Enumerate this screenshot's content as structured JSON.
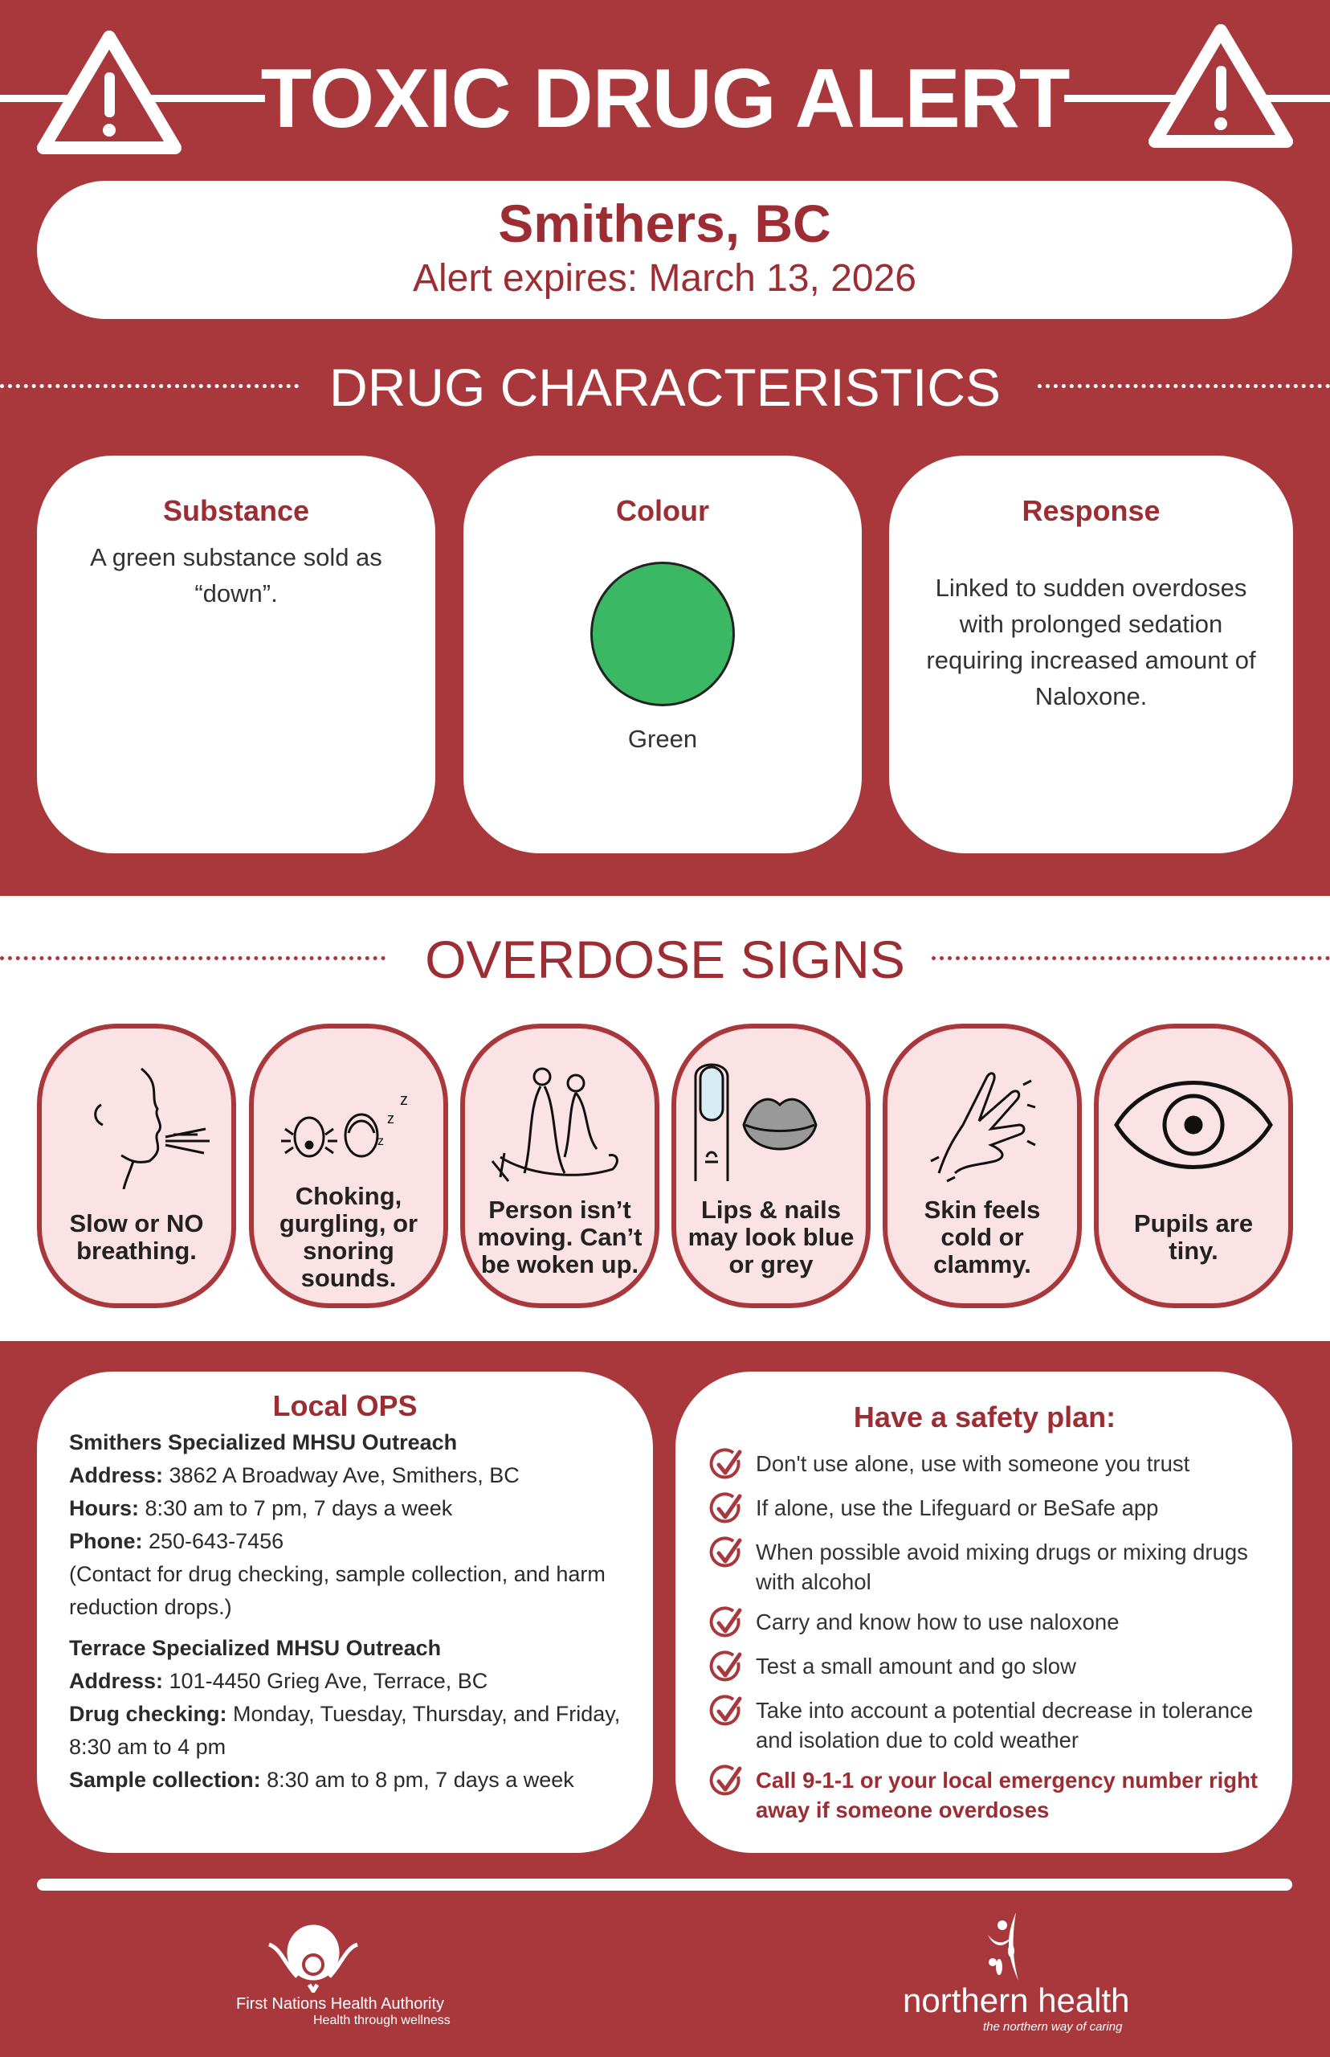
{
  "header": {
    "title": "TOXIC DRUG ALERT",
    "warning_icon": "warning-triangle-icon"
  },
  "location": {
    "name": "Smithers, BC",
    "expires": "Alert expires: March 13, 2026"
  },
  "characteristics": {
    "heading": "DRUG CHARACTERISTICS",
    "substance": {
      "title": "Substance",
      "text": "A green substance sold as “down”."
    },
    "colour": {
      "title": "Colour",
      "swatch": "#3bb863",
      "label": "Green"
    },
    "response": {
      "title": "Response",
      "text": "Linked to sudden overdoses with prolonged sedation requiring increased amount of Naloxone."
    }
  },
  "signs": {
    "heading": "OVERDOSE SIGNS",
    "items": [
      {
        "label": "Slow or NO breathing.",
        "icon": "breathing-face-icon"
      },
      {
        "label": "Choking, gurgling, or snoring sounds.",
        "icon": "choking-snoring-icon"
      },
      {
        "label": "Person isn’t moving. Can’t be woken up.",
        "icon": "unresponsive-person-icon"
      },
      {
        "label": "Lips & nails may look blue or grey",
        "icon": "lips-nails-icon"
      },
      {
        "label": "Skin feels cold or clammy.",
        "icon": "cold-hand-icon"
      },
      {
        "label": "Pupils are tiny.",
        "icon": "eye-pupil-icon"
      }
    ]
  },
  "local_ops": {
    "title": "Local OPS",
    "smithers": {
      "name": "Smithers Specialized MHSU Outreach",
      "address_label": "Address:",
      "address": " 3862 A Broadway Ave, Smithers, BC",
      "hours_label": "Hours:",
      "hours": " 8:30 am to 7 pm, 7 days a week",
      "phone_label": "Phone:",
      "phone": " 250-643-7456",
      "note": "(Contact for drug checking, sample collection, and harm reduction drops.)"
    },
    "terrace": {
      "name": "Terrace Specialized MHSU Outreach",
      "address_label": "Address:",
      "address": " 101-4450 Grieg Ave, Terrace, BC",
      "checking_label": "Drug checking:",
      "checking": " Monday, Tuesday, Thursday, and Friday, 8:30 am to 4 pm",
      "sample_label": "Sample collection:",
      "sample": " 8:30 am to 8 pm, 7 days a week"
    }
  },
  "safety_plan": {
    "title": "Have a safety plan:",
    "items": [
      "Don't use alone, use with someone you trust",
      "If alone, use the Lifeguard or BeSafe app",
      "When possible avoid mixing drugs or mixing drugs with alcohol",
      "Carry and know how to use naloxone",
      "Test a small amount and go slow",
      "Take into account a potential decrease in tolerance and isolation due to cold weather",
      "Call 9-1-1 or your local emergency number right away if someone overdoses"
    ]
  },
  "footer": {
    "fnha": {
      "name": "First Nations Health Authority",
      "tagline": "Health through wellness"
    },
    "nh": {
      "name": "northern health",
      "tagline": "the northern way of caring"
    }
  },
  "colors": {
    "background": "#a8383c",
    "accent_text": "#9b2d33",
    "sign_card": "#fbe2e5"
  }
}
